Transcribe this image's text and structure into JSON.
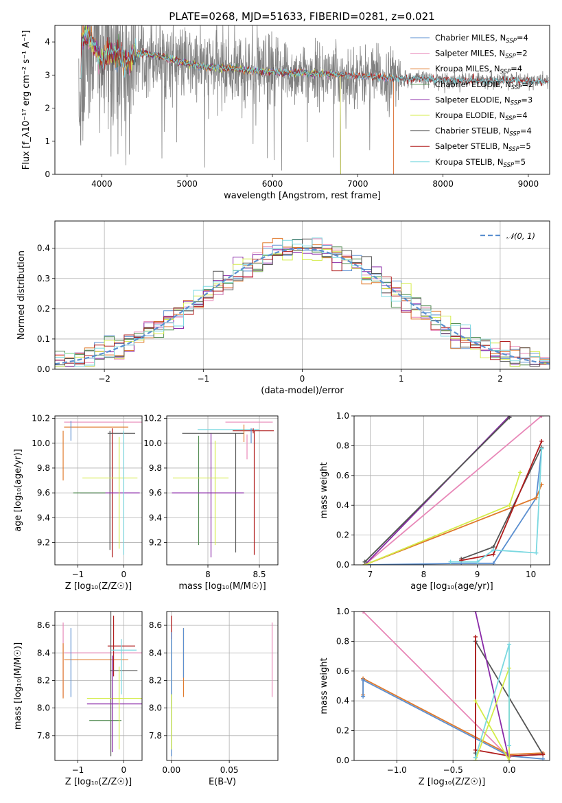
{
  "figure_title": "PLATE=0268, MJD=51633, FIBERID=0281, z=0.021",
  "colors": {
    "Chabrier MILES": "#5b8fd0",
    "Salpeter MILES": "#e888b8",
    "Kroupa MILES": "#e07a2c",
    "Chabrier ELODIE": "#4f8a4f",
    "Salpeter ELODIE": "#8a2aa8",
    "Kroupa ELODIE": "#d4ec4a",
    "Chabrier STELIB": "#555555",
    "Salpeter STELIB": "#b01c1c",
    "Kroupa STELIB": "#7ad8e0",
    "data": "#808080",
    "normal": "#5b8fd0"
  },
  "chart_data": [
    {
      "id": "spectrum",
      "type": "line",
      "xlabel": "wavelength [Angstrom, rest frame]",
      "ylabel": "Flux [f_λ10⁻¹⁷ erg cm⁻² s⁻¹ A⁻¹]",
      "xlim": [
        3450,
        9250
      ],
      "ylim": [
        0,
        4.5
      ],
      "xticks": [
        4000,
        5000,
        6000,
        7000,
        8000,
        9000
      ],
      "yticks": [
        0,
        1,
        2,
        3,
        4
      ],
      "legend_position": "upper right",
      "legend": [
        {
          "label": "Chabrier MILES, N",
          "sub": "SSP",
          "tail": "=4",
          "model": "Chabrier MILES"
        },
        {
          "label": "Salpeter MILES, N",
          "sub": "SSP",
          "tail": "=2",
          "model": "Salpeter MILES"
        },
        {
          "label": "Kroupa MILES, N",
          "sub": "SSP",
          "tail": "=4",
          "model": "Kroupa MILES"
        },
        {
          "label": "Chabrier ELODIE, N",
          "sub": "SSP",
          "tail": "=2",
          "model": "Chabrier ELODIE"
        },
        {
          "label": "Salpeter ELODIE, N",
          "sub": "SSP",
          "tail": "=3",
          "model": "Salpeter ELODIE"
        },
        {
          "label": "Kroupa ELODIE, N",
          "sub": "SSP",
          "tail": "=4",
          "model": "Kroupa ELODIE"
        },
        {
          "label": "Chabrier STELIB, N",
          "sub": "SSP",
          "tail": "=4",
          "model": "Chabrier STELIB"
        },
        {
          "label": "Salpeter STELIB, N",
          "sub": "SSP",
          "tail": "=5",
          "model": "Salpeter STELIB"
        },
        {
          "label": "Kroupa STELIB, N",
          "sub": "SSP",
          "tail": "=5",
          "model": "Kroupa STELIB"
        }
      ],
      "continuum": [
        [
          3750,
          3.9
        ],
        [
          3800,
          4.2
        ],
        [
          3900,
          4.0
        ],
        [
          4000,
          3.4
        ],
        [
          4100,
          3.7
        ],
        [
          4200,
          3.6
        ],
        [
          4300,
          3.35
        ],
        [
          4400,
          3.65
        ],
        [
          4500,
          3.65
        ],
        [
          4700,
          3.55
        ],
        [
          5000,
          3.35
        ],
        [
          5200,
          3.25
        ],
        [
          5500,
          3.2
        ],
        [
          5800,
          3.12
        ],
        [
          6000,
          3.1
        ],
        [
          6300,
          3.05
        ],
        [
          6600,
          3.05
        ],
        [
          7000,
          2.97
        ],
        [
          7200,
          2.95
        ],
        [
          7400,
          2.9
        ],
        [
          7600,
          2.88
        ],
        [
          7800,
          2.88
        ],
        [
          8200,
          2.83
        ],
        [
          8600,
          2.84
        ],
        [
          9000,
          2.82
        ],
        [
          9250,
          2.82
        ]
      ],
      "data_range": [
        3730,
        9240
      ],
      "model_cutoffs": {
        "MILES": 7420,
        "ELODIE": 6800,
        "STELIB": 9240
      }
    },
    {
      "id": "residuals",
      "type": "histogram",
      "xlabel": "(data-model)/error",
      "ylabel": "Normed distribution",
      "xlim": [
        -2.5,
        2.5
      ],
      "ylim": [
        0,
        0.49
      ],
      "xticks": [
        -2,
        -1,
        0,
        1,
        2
      ],
      "yticks": [
        0.0,
        0.1,
        0.2,
        0.3,
        0.4
      ],
      "bin_width": 0.1,
      "grid": true,
      "legend_position": "upper right",
      "legend_label": "𝒩(0, 1)",
      "reference": "normal(0,1)"
    },
    {
      "id": "age_vs_Z",
      "type": "errorbar",
      "xlabel": "Z [log₁₀(Z/Z☉)]",
      "ylabel": "age  [log₁₀(age/yr)]",
      "xlim": [
        -1.5,
        0.4
      ],
      "ylim": [
        9.02,
        10.22
      ],
      "xticks": [
        -1,
        0
      ],
      "yticks": [
        9.2,
        9.4,
        9.6,
        9.8,
        10.0,
        10.2
      ],
      "grid": true,
      "points": [
        {
          "model": "Salpeter MILES",
          "x": -0.45,
          "xerr": 0.85,
          "y": 10.17,
          "yerr": 0.0
        },
        {
          "model": "Kroupa MILES",
          "x": -0.6,
          "xerr": 0.7,
          "y": 10.13,
          "yerr": 0.0
        },
        {
          "model": "Kroupa MILES",
          "x": -1.32,
          "xerr": 0.0,
          "y": 9.9,
          "yerr": 0.2
        },
        {
          "model": "Chabrier MILES",
          "x": -1.15,
          "xerr": 0.0,
          "y": 10.1,
          "yerr": 0.08
        },
        {
          "model": "Salpeter STELIB",
          "x": -0.25,
          "xerr": 0.0,
          "y": 9.6,
          "yerr": 0.52
        },
        {
          "model": "Chabrier STELIB",
          "x": -0.05,
          "xerr": 0.3,
          "y": 10.08,
          "yerr": 0.0
        },
        {
          "model": "Chabrier STELIB",
          "x": -0.3,
          "xerr": 0.0,
          "y": 9.62,
          "yerr": 0.48
        },
        {
          "model": "Kroupa ELODIE",
          "x": -0.3,
          "xerr": 0.6,
          "y": 9.72,
          "yerr": 0.0
        },
        {
          "model": "Salpeter ELODIE",
          "x": -0.3,
          "xerr": 0.65,
          "y": 9.6,
          "yerr": 0.0
        },
        {
          "model": "Kroupa ELODIE",
          "x": -0.1,
          "xerr": 0.0,
          "y": 9.6,
          "yerr": 0.45
        },
        {
          "model": "Kroupa STELIB",
          "x": 0.0,
          "xerr": 0.0,
          "y": 9.6,
          "yerr": 0.5
        },
        {
          "model": "Chabrier ELODIE",
          "x": -0.75,
          "xerr": 0.35,
          "y": 9.6,
          "yerr": 0.0
        }
      ]
    },
    {
      "id": "age_vs_mass",
      "type": "errorbar",
      "xlabel": "mass [log₁₀(M/M☉)]",
      "ylabel": "",
      "xlim": [
        7.6,
        8.68
      ],
      "ylim": [
        9.02,
        10.22
      ],
      "xticks": [
        8.0,
        8.5
      ],
      "yticks": [
        9.2,
        9.4,
        9.6,
        9.8,
        10.0,
        10.2
      ],
      "grid": true,
      "points": [
        {
          "model": "Salpeter MILES",
          "x": 8.4,
          "xerr": 0.23,
          "y": 10.17,
          "yerr": 0.0
        },
        {
          "model": "Kroupa STELIB",
          "x": 8.2,
          "xerr": 0.3,
          "y": 10.11,
          "yerr": 0.0
        },
        {
          "model": "Salpeter STELIB",
          "x": 8.44,
          "xerr": 0.2,
          "y": 10.1,
          "yerr": 0.02
        },
        {
          "model": "Chabrier STELIB",
          "x": 8.05,
          "xerr": 0.3,
          "y": 10.08,
          "yerr": 0.0
        },
        {
          "model": "Kroupa MILES",
          "x": 8.35,
          "xerr": 0.0,
          "y": 10.08,
          "yerr": 0.07
        },
        {
          "model": "Salpeter STELIB",
          "x": 8.45,
          "xerr": 0.0,
          "y": 9.6,
          "yerr": 0.5
        },
        {
          "model": "Chabrier STELIB",
          "x": 8.27,
          "xerr": 0.0,
          "y": 9.6,
          "yerr": 0.48
        },
        {
          "model": "Kroupa ELODIE",
          "x": 8.07,
          "xerr": 0.0,
          "y": 9.6,
          "yerr": 0.42
        },
        {
          "model": "Salpeter ELODIE",
          "x": 8.03,
          "xerr": 0.0,
          "y": 9.58,
          "yerr": 0.5
        },
        {
          "model": "Chabrier ELODIE",
          "x": 7.91,
          "xerr": 0.0,
          "y": 9.62,
          "yerr": 0.44
        },
        {
          "model": "Kroupa ELODIE",
          "x": 7.93,
          "xerr": 0.27,
          "y": 9.72,
          "yerr": 0.0
        },
        {
          "model": "Salpeter ELODIE",
          "x": 8.0,
          "xerr": 0.35,
          "y": 9.6,
          "yerr": 0.0
        },
        {
          "model": "Chabrier MILES",
          "x": 8.42,
          "xerr": 0.0,
          "y": 10.06,
          "yerr": 0.06
        },
        {
          "model": "Salpeter MILES",
          "x": 8.38,
          "xerr": 0.0,
          "y": 9.97,
          "yerr": 0.1
        }
      ]
    },
    {
      "id": "weight_vs_age",
      "type": "line",
      "xlabel": "age  [log₁₀(age/yr)]",
      "ylabel": "mass weight",
      "xlim": [
        6.7,
        10.35
      ],
      "ylim": [
        0,
        1.0
      ],
      "xticks": [
        7,
        8,
        9,
        10
      ],
      "yticks": [
        0.0,
        0.2,
        0.4,
        0.6,
        0.8,
        1.0
      ],
      "grid": true,
      "series": [
        {
          "model": "Chabrier MILES",
          "x": [
            6.9,
            8.7,
            9.3,
            10.1,
            10.2
          ],
          "y": [
            0.0,
            0.01,
            0.01,
            0.45,
            0.78
          ]
        },
        {
          "model": "Salpeter MILES",
          "x": [
            6.9,
            10.2
          ],
          "y": [
            0.0,
            1.0
          ]
        },
        {
          "model": "Kroupa MILES",
          "x": [
            6.9,
            10.1,
            10.2
          ],
          "y": [
            0.0,
            0.45,
            0.54
          ]
        },
        {
          "model": "Chabrier ELODIE",
          "x": [
            6.9,
            9.6
          ],
          "y": [
            0.02,
            0.99
          ]
        },
        {
          "model": "Salpeter ELODIE",
          "x": [
            6.9,
            9.6
          ],
          "y": [
            0.0,
            1.0
          ]
        },
        {
          "model": "Kroupa ELODIE",
          "x": [
            6.9,
            9.6,
            9.8
          ],
          "y": [
            0.0,
            0.4,
            0.62
          ]
        },
        {
          "model": "Chabrier STELIB",
          "x": [
            6.9,
            9.6
          ],
          "y": [
            0.02,
            0.99
          ]
        },
        {
          "model": "Chabrier STELIB",
          "x": [
            8.7,
            9.3,
            10.2
          ],
          "y": [
            0.04,
            0.12,
            0.79
          ]
        },
        {
          "model": "Salpeter STELIB",
          "x": [
            8.7,
            9.3,
            10.2
          ],
          "y": [
            0.03,
            0.07,
            0.83
          ]
        },
        {
          "model": "Kroupa STELIB",
          "x": [
            8.5,
            9.0,
            9.3,
            10.1,
            10.2
          ],
          "y": [
            0.02,
            0.02,
            0.1,
            0.08,
            0.78
          ]
        }
      ]
    },
    {
      "id": "mass_vs_Z",
      "type": "errorbar",
      "xlabel": "Z [log₁₀(Z/Z☉)]",
      "ylabel": "mass [log₁₀(M/M☉)]",
      "xlim": [
        -1.5,
        0.4
      ],
      "ylim": [
        7.62,
        8.7
      ],
      "xticks": [
        -1,
        0
      ],
      "yticks": [
        7.8,
        8.0,
        8.2,
        8.4,
        8.6
      ],
      "grid": true,
      "points": [
        {
          "model": "Salpeter MILES",
          "x": -0.45,
          "xerr": 0.85,
          "y": 8.4,
          "yerr": 0.0
        },
        {
          "model": "Kroupa MILES",
          "x": -0.6,
          "xerr": 0.7,
          "y": 8.35,
          "yerr": 0.0
        },
        {
          "model": "Salpeter MILES",
          "x": -1.32,
          "xerr": 0.0,
          "y": 8.35,
          "yerr": 0.27
        },
        {
          "model": "Kroupa MILES",
          "x": -1.32,
          "xerr": 0.0,
          "y": 8.27,
          "yerr": 0.2
        },
        {
          "model": "Chabrier MILES",
          "x": -1.15,
          "xerr": 0.0,
          "y": 8.33,
          "yerr": 0.25
        },
        {
          "model": "Salpeter STELIB",
          "x": -0.05,
          "xerr": 0.3,
          "y": 8.45,
          "yerr": 0.0
        },
        {
          "model": "Salpeter STELIB",
          "x": -0.22,
          "xerr": 0.0,
          "y": 8.45,
          "yerr": 0.22
        },
        {
          "model": "Chabrier STELIB",
          "x": 0.0,
          "xerr": 0.3,
          "y": 8.27,
          "yerr": 0.0
        },
        {
          "model": "Chabrier STELIB",
          "x": -0.28,
          "xerr": 0.0,
          "y": 8.2,
          "yerr": 0.55
        },
        {
          "model": "Kroupa STELIB",
          "x": 0.0,
          "xerr": 0.28,
          "y": 8.42,
          "yerr": 0.0
        },
        {
          "model": "Kroupa STELIB",
          "x": -0.05,
          "xerr": 0.0,
          "y": 8.3,
          "yerr": 0.2
        },
        {
          "model": "Kroupa ELODIE",
          "x": -0.2,
          "xerr": 0.6,
          "y": 8.07,
          "yerr": 0.0
        },
        {
          "model": "Salpeter ELODIE",
          "x": -0.2,
          "xerr": 0.6,
          "y": 8.03,
          "yerr": 0.0
        },
        {
          "model": "Chabrier ELODIE",
          "x": -0.4,
          "xerr": 0.35,
          "y": 7.91,
          "yerr": 0.0
        },
        {
          "model": "Kroupa ELODIE",
          "x": -0.1,
          "xerr": 0.0,
          "y": 8.0,
          "yerr": 0.3
        },
        {
          "model": "Salpeter ELODIE",
          "x": -0.25,
          "xerr": 0.0,
          "y": 8.03,
          "yerr": 0.35
        }
      ]
    },
    {
      "id": "mass_vs_ebv",
      "type": "errorbar",
      "xlabel": "E(B-V)",
      "ylabel": "",
      "xlim": [
        -0.004,
        0.092
      ],
      "ylim": [
        7.62,
        8.7
      ],
      "xticks": [
        0.0,
        0.05
      ],
      "xticklabels": [
        "0.00",
        "0.05"
      ],
      "yticks": [
        7.8,
        8.0,
        8.2,
        8.4,
        8.6
      ],
      "grid": true,
      "points": [
        {
          "model": "Salpeter STELIB",
          "x": 0.0,
          "xerr": 0.0,
          "y": 8.35,
          "yerr": 0.32
        },
        {
          "model": "Kroupa STELIB",
          "x": 0.0,
          "xerr": 0.0,
          "y": 8.25,
          "yerr": 0.25
        },
        {
          "model": "Chabrier MILES",
          "x": 0.0,
          "xerr": 0.0,
          "y": 8.1,
          "yerr": 0.45
        },
        {
          "model": "Kroupa ELODIE",
          "x": 0.0,
          "xerr": 0.0,
          "y": 7.9,
          "yerr": 0.2
        },
        {
          "model": "Kroupa MILES",
          "x": 0.0105,
          "xerr": 0.0,
          "y": 8.33,
          "yerr": 0.25
        },
        {
          "model": "Chabrier MILES",
          "x": 0.0105,
          "xerr": 0.0,
          "y": 8.4,
          "yerr": 0.18
        },
        {
          "model": "Salpeter MILES",
          "x": 0.087,
          "xerr": 0.0,
          "y": 8.35,
          "yerr": 0.27
        }
      ]
    },
    {
      "id": "weight_vs_Z",
      "type": "line",
      "xlabel": "Z [log₁₀(Z/Z☉)]",
      "ylabel": "mass weight",
      "xlim": [
        -1.38,
        0.36
      ],
      "ylim": [
        0,
        1.0
      ],
      "xticks": [
        -1.0,
        -0.5,
        0.0
      ],
      "xticklabels": [
        "−1.0",
        "−0.5",
        "0.0"
      ],
      "yticks": [
        0.0,
        0.2,
        0.4,
        0.6,
        0.8,
        1.0
      ],
      "grid": true,
      "series": [
        {
          "model": "Salpeter MILES",
          "x": [
            -1.3,
            0.0
          ],
          "y": [
            1.0,
            0.02
          ]
        },
        {
          "model": "Kroupa MILES",
          "x": [
            -1.3,
            -1.3,
            0.0,
            0.3
          ],
          "y": [
            0.44,
            0.55,
            0.04,
            0.05
          ]
        },
        {
          "model": "Chabrier MILES",
          "x": [
            -1.3,
            -1.3,
            0.0,
            0.3
          ],
          "y": [
            0.43,
            0.54,
            0.03,
            0.01
          ]
        },
        {
          "model": "Chabrier STELIB",
          "x": [
            -0.3,
            -0.3,
            -0.3
          ],
          "y": [
            0.02,
            0.05,
            0.8
          ]
        },
        {
          "model": "Chabrier STELIB",
          "x": [
            -0.3,
            0.3,
            0.0
          ],
          "y": [
            0.8,
            0.04,
            0.03
          ]
        },
        {
          "model": "Salpeter STELIB",
          "x": [
            -0.3,
            -0.3,
            0.0,
            0.3
          ],
          "y": [
            0.83,
            0.07,
            0.03,
            0.04
          ]
        },
        {
          "model": "Salpeter ELODIE",
          "x": [
            -0.3,
            0.0
          ],
          "y": [
            1.0,
            0.0
          ]
        },
        {
          "model": "Kroupa ELODIE",
          "x": [
            -0.3,
            0.0
          ],
          "y": [
            0.4,
            0.0
          ]
        },
        {
          "model": "Kroupa ELODIE",
          "x": [
            -0.3,
            0.0,
            0.0
          ],
          "y": [
            0.0,
            0.62,
            0.0
          ]
        },
        {
          "model": "Kroupa STELIB",
          "x": [
            -0.3,
            0.0,
            0.0
          ],
          "y": [
            0.02,
            0.78,
            0.1
          ]
        }
      ]
    }
  ]
}
